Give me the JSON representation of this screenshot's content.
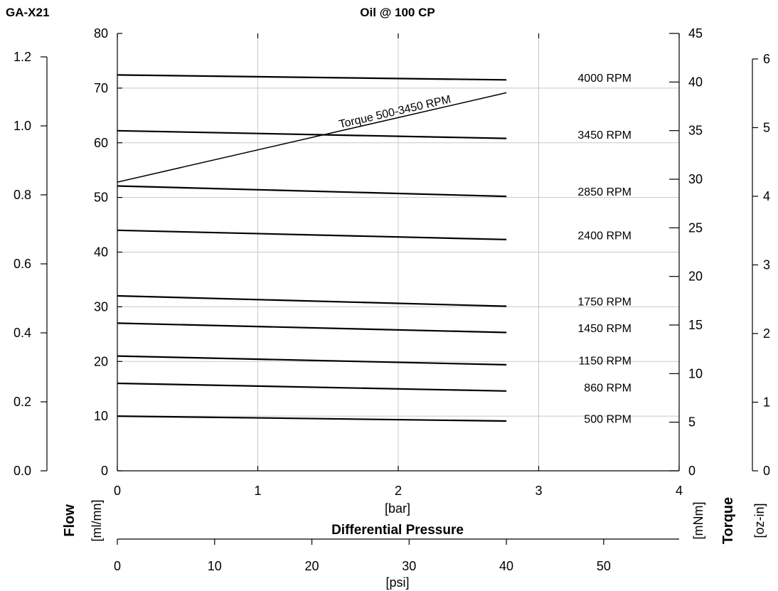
{
  "model": "GA-X21",
  "title": "Oil @ 100 CP",
  "axes": {
    "flow_label": "Flow",
    "flow_ml_unit": "[ml/mn]",
    "flow_gph_unit": "[gph]",
    "torque_label": "Torque",
    "torque_mnm_unit": "[mNm]",
    "torque_ozin_unit": "[oz-in]",
    "pressure_label": "Differential Pressure",
    "bar_unit": "[bar]",
    "psi_unit": "[psi]",
    "bar_ticks": [
      "0",
      "1",
      "2",
      "3",
      "4"
    ],
    "psi_ticks": [
      "0",
      "10",
      "20",
      "30",
      "40",
      "50"
    ],
    "ml_ticks": [
      "0",
      "10",
      "20",
      "30",
      "40",
      "50",
      "60",
      "70",
      "80"
    ],
    "gph_ticks": [
      "0.0",
      "0.2",
      "0.4",
      "0.6",
      "0.8",
      "1.0",
      "1.2"
    ],
    "mnm_ticks": [
      "0",
      "5",
      "10",
      "15",
      "20",
      "25",
      "30",
      "35",
      "40",
      "45"
    ],
    "ozin_ticks": [
      "0",
      "1",
      "2",
      "3",
      "4",
      "5",
      "6"
    ]
  },
  "chart_data": {
    "type": "line",
    "title": "Oil @ 100 CP",
    "xlabel": "Differential Pressure [bar]",
    "ylabel": "Flow [ml/mn]",
    "y2label": "Torque [mNm]",
    "xlim": [
      0,
      4
    ],
    "ylim": [
      0,
      80
    ],
    "y2lim": [
      0,
      45
    ],
    "grid": true,
    "series": [
      {
        "name": "4000 RPM",
        "x": [
          0,
          2.77
        ],
        "y": [
          72.4,
          71.5
        ]
      },
      {
        "name": "3450 RPM",
        "x": [
          0,
          2.77
        ],
        "y": [
          62.2,
          60.8
        ]
      },
      {
        "name": "2850 RPM",
        "x": [
          0,
          2.77
        ],
        "y": [
          52.1,
          50.2
        ]
      },
      {
        "name": "2400 RPM",
        "x": [
          0,
          2.77
        ],
        "y": [
          44.0,
          42.3
        ]
      },
      {
        "name": "1750 RPM",
        "x": [
          0,
          2.77
        ],
        "y": [
          32.0,
          30.1
        ]
      },
      {
        "name": "1450 RPM",
        "x": [
          0,
          2.77
        ],
        "y": [
          27.0,
          25.3
        ]
      },
      {
        "name": "1150 RPM",
        "x": [
          0,
          2.77
        ],
        "y": [
          21.0,
          19.4
        ]
      },
      {
        "name": "860 RPM",
        "x": [
          0,
          2.77
        ],
        "y": [
          16.0,
          14.6
        ]
      },
      {
        "name": "500 RPM",
        "x": [
          0,
          2.77
        ],
        "y": [
          10.0,
          9.1
        ]
      }
    ],
    "torque_series": {
      "name": "Torque 500-3450 RPM",
      "axis": "y2",
      "x": [
        0,
        2.77
      ],
      "y": [
        29.7,
        38.9
      ]
    }
  }
}
